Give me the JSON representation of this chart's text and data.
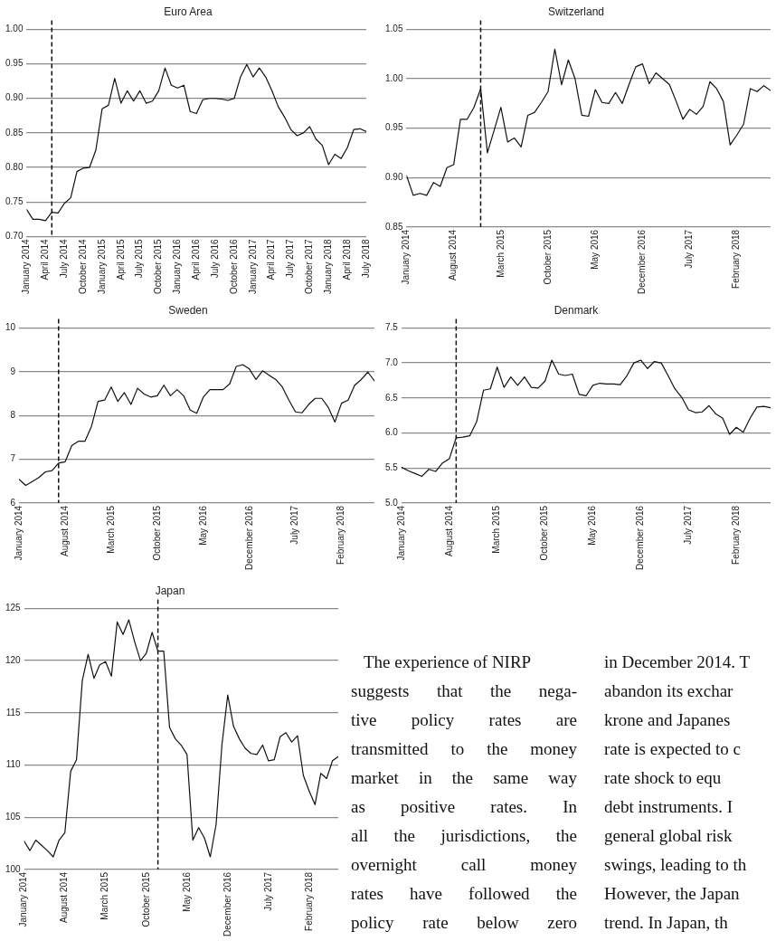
{
  "chart_data": [
    {
      "type": "line",
      "title": "Euro Area",
      "x": [
        "2014-01",
        "2014-02",
        "2014-03",
        "2014-04",
        "2014-05",
        "2014-06",
        "2014-07",
        "2014-08",
        "2014-09",
        "2014-10",
        "2014-11",
        "2014-12",
        "2015-01",
        "2015-02",
        "2015-03",
        "2015-04",
        "2015-05",
        "2015-06",
        "2015-07",
        "2015-08",
        "2015-09",
        "2015-10",
        "2015-11",
        "2015-12",
        "2016-01",
        "2016-02",
        "2016-03",
        "2016-04",
        "2016-05",
        "2016-06",
        "2016-07",
        "2016-08",
        "2016-09",
        "2016-10",
        "2016-11",
        "2016-12",
        "2017-01",
        "2017-02",
        "2017-03",
        "2017-04",
        "2017-05",
        "2017-06",
        "2017-07",
        "2017-08",
        "2017-09",
        "2017-10",
        "2017-11",
        "2017-12",
        "2018-01",
        "2018-02",
        "2018-03",
        "2018-04",
        "2018-05",
        "2018-06",
        "2018-07"
      ],
      "series": [
        {
          "color": "#111111",
          "values": [
            0.739,
            0.725,
            0.725,
            0.723,
            0.735,
            0.734,
            0.748,
            0.756,
            0.794,
            0.799,
            0.8,
            0.825,
            0.885,
            0.89,
            0.929,
            0.893,
            0.911,
            0.896,
            0.911,
            0.893,
            0.896,
            0.911,
            0.944,
            0.919,
            0.915,
            0.919,
            0.881,
            0.878,
            0.898,
            0.9,
            0.9,
            0.899,
            0.897,
            0.9,
            0.931,
            0.949,
            0.931,
            0.944,
            0.931,
            0.911,
            0.888,
            0.873,
            0.855,
            0.846,
            0.85,
            0.859,
            0.841,
            0.832,
            0.804,
            0.819,
            0.813,
            0.829,
            0.855,
            0.856,
            0.852
          ]
        }
      ],
      "xlim": [
        "2014-01",
        "2018-07"
      ],
      "xticks": [
        {
          "value": "2014-01",
          "label": "January 2014"
        },
        {
          "value": "2014-04",
          "label": "April 2014"
        },
        {
          "value": "2014-07",
          "label": "July 2014"
        },
        {
          "value": "2014-10",
          "label": "October 2014"
        },
        {
          "value": "2015-01",
          "label": "January 2015"
        },
        {
          "value": "2015-04",
          "label": "April 2015"
        },
        {
          "value": "2015-07",
          "label": "July 2015"
        },
        {
          "value": "2015-10",
          "label": "October 2015"
        },
        {
          "value": "2016-01",
          "label": "January 2016"
        },
        {
          "value": "2016-04",
          "label": "April 2016"
        },
        {
          "value": "2016-07",
          "label": "July 2016"
        },
        {
          "value": "2016-10",
          "label": "October 2016"
        },
        {
          "value": "2017-01",
          "label": "January 2017"
        },
        {
          "value": "2017-04",
          "label": "April 2017"
        },
        {
          "value": "2017-07",
          "label": "July 2017"
        },
        {
          "value": "2017-10",
          "label": "October 2017"
        },
        {
          "value": "2018-01",
          "label": "January 2018"
        },
        {
          "value": "2018-04",
          "label": "April 2018"
        },
        {
          "value": "2018-07",
          "label": "July 2018"
        }
      ],
      "ylim": [
        0.7,
        1.0
      ],
      "yticks": [
        {
          "value": 0.7,
          "label": "0.70"
        },
        {
          "value": 0.75,
          "label": "0.75"
        },
        {
          "value": 0.8,
          "label": "0.80"
        },
        {
          "value": 0.85,
          "label": "0.85"
        },
        {
          "value": 0.9,
          "label": "0.90"
        },
        {
          "value": 0.95,
          "label": "0.95"
        },
        {
          "value": 1.0,
          "label": "1.00"
        }
      ],
      "grid": "y",
      "marker": "none",
      "line_style": "solid",
      "ref_lines": [
        {
          "axis": "x",
          "value": "2014-05",
          "color": "#111111",
          "line_style": "dashed"
        }
      ]
    },
    {
      "type": "line",
      "title": "Switzerland",
      "x": [
        "2014-01",
        "2014-02",
        "2014-03",
        "2014-04",
        "2014-05",
        "2014-06",
        "2014-07",
        "2014-08",
        "2014-09",
        "2014-10",
        "2014-11",
        "2014-12",
        "2015-01",
        "2015-02",
        "2015-03",
        "2015-04",
        "2015-05",
        "2015-06",
        "2015-07",
        "2015-08",
        "2015-09",
        "2015-10",
        "2015-11",
        "2015-12",
        "2016-01",
        "2016-02",
        "2016-03",
        "2016-04",
        "2016-05",
        "2016-06",
        "2016-07",
        "2016-08",
        "2016-09",
        "2016-10",
        "2016-11",
        "2016-12",
        "2017-01",
        "2017-02",
        "2017-03",
        "2017-04",
        "2017-05",
        "2017-06",
        "2017-07",
        "2017-08",
        "2017-09",
        "2017-10",
        "2017-11",
        "2017-12",
        "2018-01",
        "2018-02",
        "2018-03",
        "2018-04",
        "2018-05",
        "2018-06",
        "2018-07"
      ],
      "series": [
        {
          "color": "#111111",
          "values": [
            0.902,
            0.882,
            0.884,
            0.882,
            0.895,
            0.891,
            0.91,
            0.913,
            0.959,
            0.959,
            0.971,
            0.99,
            0.925,
            0.948,
            0.971,
            0.936,
            0.94,
            0.931,
            0.963,
            0.966,
            0.976,
            0.987,
            1.03,
            0.994,
            1.019,
            1.0,
            0.963,
            0.962,
            0.989,
            0.976,
            0.975,
            0.986,
            0.975,
            0.994,
            1.012,
            1.015,
            0.995,
            1.006,
            1.0,
            0.994,
            0.977,
            0.959,
            0.969,
            0.964,
            0.972,
            0.997,
            0.99,
            0.977,
            0.933,
            0.943,
            0.954,
            0.99,
            0.987,
            0.993,
            0.988
          ]
        }
      ],
      "xlim": [
        "2014-01",
        "2018-07"
      ],
      "xticks": [
        {
          "value": "2014-01",
          "label": "January 2014"
        },
        {
          "value": "2014-08",
          "label": "August 2014"
        },
        {
          "value": "2015-03",
          "label": "March 2015"
        },
        {
          "value": "2015-10",
          "label": "October 2015"
        },
        {
          "value": "2016-05",
          "label": "May 2016"
        },
        {
          "value": "2016-12",
          "label": "December 2016"
        },
        {
          "value": "2017-07",
          "label": "July 2017"
        },
        {
          "value": "2018-02",
          "label": "February 2018"
        }
      ],
      "ylim": [
        0.85,
        1.05
      ],
      "yticks": [
        {
          "value": 0.85,
          "label": "0.85"
        },
        {
          "value": 0.9,
          "label": "0.90"
        },
        {
          "value": 0.95,
          "label": "0.95"
        },
        {
          "value": 1.0,
          "label": "1.00"
        },
        {
          "value": 1.05,
          "label": "1.05"
        }
      ],
      "grid": "y",
      "marker": "none",
      "line_style": "solid",
      "ref_lines": [
        {
          "axis": "x",
          "value": "2014-12",
          "color": "#111111",
          "line_style": "dashed"
        }
      ]
    },
    {
      "type": "line",
      "title": "Sweden",
      "x": [
        "2014-01",
        "2014-02",
        "2014-03",
        "2014-04",
        "2014-05",
        "2014-06",
        "2014-07",
        "2014-08",
        "2014-09",
        "2014-10",
        "2014-11",
        "2014-12",
        "2015-01",
        "2015-02",
        "2015-03",
        "2015-04",
        "2015-05",
        "2015-06",
        "2015-07",
        "2015-08",
        "2015-09",
        "2015-10",
        "2015-11",
        "2015-12",
        "2016-01",
        "2016-02",
        "2016-03",
        "2016-04",
        "2016-05",
        "2016-06",
        "2016-07",
        "2016-08",
        "2016-09",
        "2016-10",
        "2016-11",
        "2016-12",
        "2017-01",
        "2017-02",
        "2017-03",
        "2017-04",
        "2017-05",
        "2017-06",
        "2017-07",
        "2017-08",
        "2017-09",
        "2017-10",
        "2017-11",
        "2017-12",
        "2018-01",
        "2018-02",
        "2018-03",
        "2018-04",
        "2018-05",
        "2018-06",
        "2018-07"
      ],
      "series": [
        {
          "color": "#111111",
          "values": [
            6.54,
            6.4,
            6.49,
            6.58,
            6.71,
            6.74,
            6.91,
            6.94,
            7.31,
            7.41,
            7.41,
            7.75,
            8.32,
            8.35,
            8.65,
            8.32,
            8.52,
            8.25,
            8.62,
            8.49,
            8.42,
            8.45,
            8.69,
            8.45,
            8.59,
            8.45,
            8.12,
            8.05,
            8.42,
            8.59,
            8.59,
            8.59,
            8.72,
            9.12,
            9.16,
            9.06,
            8.82,
            9.02,
            8.92,
            8.82,
            8.65,
            8.35,
            8.08,
            8.06,
            8.25,
            8.39,
            8.39,
            8.18,
            7.85,
            8.28,
            8.35,
            8.69,
            8.82,
            8.99,
            8.79
          ]
        }
      ],
      "xlim": [
        "2014-01",
        "2018-07"
      ],
      "xticks": [
        {
          "value": "2014-01",
          "label": "January 2014"
        },
        {
          "value": "2014-08",
          "label": "August 2014"
        },
        {
          "value": "2015-03",
          "label": "March 2015"
        },
        {
          "value": "2015-10",
          "label": "October 2015"
        },
        {
          "value": "2016-05",
          "label": "May 2016"
        },
        {
          "value": "2016-12",
          "label": "December 2016"
        },
        {
          "value": "2017-07",
          "label": "July 2017"
        },
        {
          "value": "2018-02",
          "label": "February 2018"
        }
      ],
      "ylim": [
        6,
        10
      ],
      "yticks": [
        6,
        7,
        8,
        9,
        10
      ],
      "grid": "y",
      "marker": "none",
      "line_style": "solid",
      "ref_lines": [
        {
          "axis": "x",
          "value": "2014-07",
          "color": "#111111",
          "line_style": "dashed"
        }
      ]
    },
    {
      "type": "line",
      "title": "Denmark",
      "x": [
        "2014-01",
        "2014-02",
        "2014-03",
        "2014-04",
        "2014-05",
        "2014-06",
        "2014-07",
        "2014-08",
        "2014-09",
        "2014-10",
        "2014-11",
        "2014-12",
        "2015-01",
        "2015-02",
        "2015-03",
        "2015-04",
        "2015-05",
        "2015-06",
        "2015-07",
        "2015-08",
        "2015-09",
        "2015-10",
        "2015-11",
        "2015-12",
        "2016-01",
        "2016-02",
        "2016-03",
        "2016-04",
        "2016-05",
        "2016-06",
        "2016-07",
        "2016-08",
        "2016-09",
        "2016-10",
        "2016-11",
        "2016-12",
        "2017-01",
        "2017-02",
        "2017-03",
        "2017-04",
        "2017-05",
        "2017-06",
        "2017-07",
        "2017-08",
        "2017-09",
        "2017-10",
        "2017-11",
        "2017-12",
        "2018-01",
        "2018-02",
        "2018-03",
        "2018-04",
        "2018-05",
        "2018-06",
        "2018-07"
      ],
      "series": [
        {
          "color": "#111111",
          "values": [
            5.51,
            5.46,
            5.42,
            5.38,
            5.48,
            5.45,
            5.57,
            5.63,
            5.93,
            5.94,
            5.96,
            6.16,
            6.61,
            6.63,
            6.94,
            6.65,
            6.8,
            6.68,
            6.8,
            6.65,
            6.64,
            6.74,
            7.04,
            6.84,
            6.82,
            6.84,
            6.55,
            6.53,
            6.68,
            6.71,
            6.7,
            6.7,
            6.69,
            6.82,
            7.0,
            7.04,
            6.92,
            7.02,
            7.0,
            6.82,
            6.63,
            6.51,
            6.33,
            6.29,
            6.3,
            6.39,
            6.27,
            6.21,
            5.98,
            6.08,
            6.01,
            6.21,
            6.37,
            6.38,
            6.36
          ]
        }
      ],
      "xlim": [
        "2014-01",
        "2018-07"
      ],
      "xticks": [
        {
          "value": "2014-01",
          "label": "January 2014"
        },
        {
          "value": "2014-08",
          "label": "August 2014"
        },
        {
          "value": "2015-03",
          "label": "March 2015"
        },
        {
          "value": "2015-10",
          "label": "October 2015"
        },
        {
          "value": "2016-05",
          "label": "May 2016"
        },
        {
          "value": "2016-12",
          "label": "December 2016"
        },
        {
          "value": "2017-07",
          "label": "July 2017"
        },
        {
          "value": "2018-02",
          "label": "February 2018"
        }
      ],
      "ylim": [
        5.0,
        7.5
      ],
      "yticks": [
        {
          "value": 5.0,
          "label": "5.0"
        },
        {
          "value": 5.5,
          "label": "5.5"
        },
        {
          "value": 6.0,
          "label": "6.0"
        },
        {
          "value": 6.5,
          "label": "6.5"
        },
        {
          "value": 7.0,
          "label": "7.0"
        },
        {
          "value": 7.5,
          "label": "7.5"
        }
      ],
      "grid": "y",
      "marker": "none",
      "line_style": "solid",
      "ref_lines": [
        {
          "axis": "x",
          "value": "2014-09",
          "color": "#111111",
          "line_style": "dashed"
        }
      ]
    },
    {
      "type": "line",
      "title": "Japan",
      "x": [
        "2014-01",
        "2014-02",
        "2014-03",
        "2014-04",
        "2014-05",
        "2014-06",
        "2014-07",
        "2014-08",
        "2014-09",
        "2014-10",
        "2014-11",
        "2014-12",
        "2015-01",
        "2015-02",
        "2015-03",
        "2015-04",
        "2015-05",
        "2015-06",
        "2015-07",
        "2015-08",
        "2015-09",
        "2015-10",
        "2015-11",
        "2015-12",
        "2016-01",
        "2016-02",
        "2016-03",
        "2016-04",
        "2016-05",
        "2016-06",
        "2016-07",
        "2016-08",
        "2016-09",
        "2016-10",
        "2016-11",
        "2016-12",
        "2017-01",
        "2017-02",
        "2017-03",
        "2017-04",
        "2017-05",
        "2017-06",
        "2017-07",
        "2017-08",
        "2017-09",
        "2017-10",
        "2017-11",
        "2017-12",
        "2018-01",
        "2018-02",
        "2018-03",
        "2018-04",
        "2018-05",
        "2018-06",
        "2018-07"
      ],
      "series": [
        {
          "color": "#111111",
          "values": [
            102.7,
            101.8,
            102.8,
            102.3,
            101.8,
            101.2,
            102.8,
            103.5,
            109.4,
            110.5,
            118.1,
            120.6,
            118.3,
            119.6,
            119.9,
            118.5,
            123.7,
            122.5,
            123.9,
            121.8,
            120.0,
            120.7,
            122.7,
            120.9,
            120.9,
            113.6,
            112.5,
            111.9,
            111.0,
            102.8,
            104.0,
            103.0,
            101.2,
            104.3,
            111.9,
            116.7,
            113.7,
            112.5,
            111.6,
            111.1,
            111.0,
            111.9,
            110.4,
            110.5,
            112.7,
            113.1,
            112.2,
            112.8,
            109.0,
            107.5,
            106.2,
            109.2,
            108.7,
            110.4,
            110.8
          ]
        }
      ],
      "xlim": [
        "2014-01",
        "2018-07"
      ],
      "xticks": [
        {
          "value": "2014-01",
          "label": "January 2014"
        },
        {
          "value": "2014-08",
          "label": "August 2014"
        },
        {
          "value": "2015-03",
          "label": "March 2015"
        },
        {
          "value": "2015-10",
          "label": "October 2015"
        },
        {
          "value": "2016-05",
          "label": "May 2016"
        },
        {
          "value": "2016-12",
          "label": "December 2016"
        },
        {
          "value": "2017-07",
          "label": "July 2017"
        },
        {
          "value": "2018-02",
          "label": "February 2018"
        }
      ],
      "ylim": [
        100,
        125
      ],
      "yticks": [
        100,
        105,
        110,
        115,
        120,
        125
      ],
      "grid": "y",
      "marker": "none",
      "line_style": "solid",
      "ref_lines": [
        {
          "axis": "x",
          "value": "2015-12",
          "color": "#111111",
          "line_style": "dashed"
        }
      ]
    },
    {
      "type": "other",
      "annotations": [
        "The experience of NIRP",
        "suggests that the nega-",
        "tive policy rates are",
        "transmitted to the money",
        "market in the same way",
        "as positive rates. In",
        "all the jurisdictions, the",
        "overnight call money",
        "rates have followed the",
        "policy rate below zero"
      ]
    },
    {
      "type": "other",
      "annotations": [
        "in December 2014. T",
        "abandon its exchar",
        "krone and Japanes",
        "rate is expected to c",
        "rate shock to equ",
        "debt instruments. I",
        "general global risk",
        "swings, leading to th",
        "However, the Japan",
        "trend. In Japan, th"
      ]
    }
  ]
}
